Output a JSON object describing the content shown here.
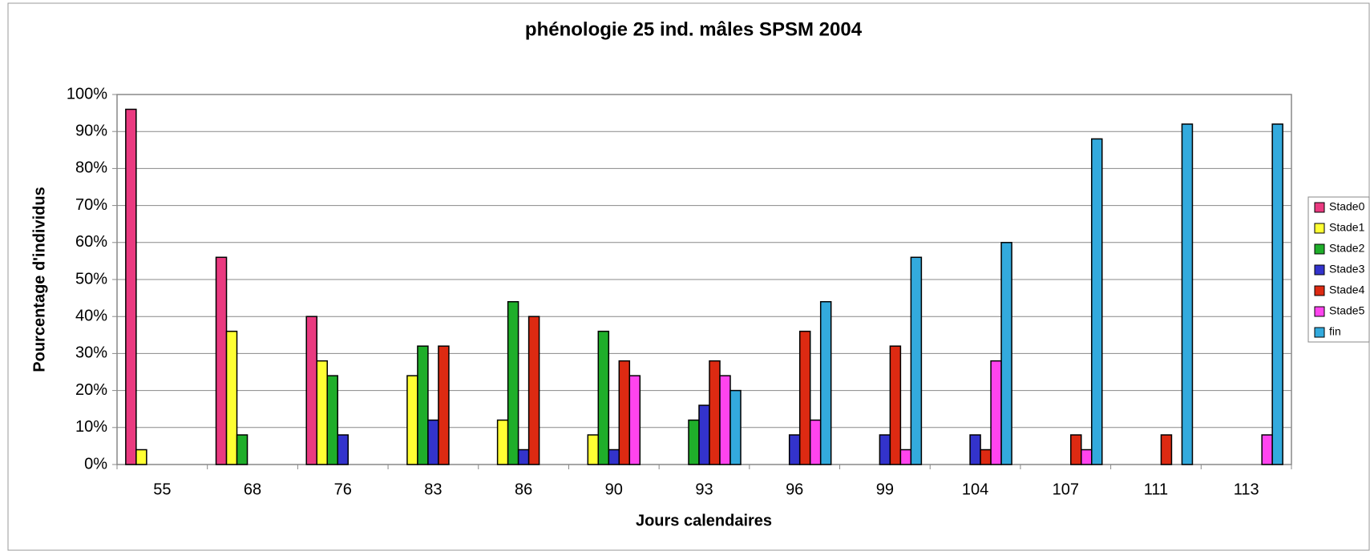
{
  "chart_data": {
    "type": "bar",
    "title": "phénologie 25 ind. mâles SPSM 2004",
    "x_label": "Jours calendaires",
    "y_label": "Pourcentage d'individus",
    "categories": [
      "55",
      "68",
      "76",
      "83",
      "86",
      "90",
      "93",
      "96",
      "99",
      "104",
      "107",
      "111",
      "113"
    ],
    "series": [
      {
        "name": "Stade0",
        "color": "#ea3a80",
        "values": [
          96,
          56,
          40,
          0,
          0,
          0,
          0,
          0,
          0,
          0,
          0,
          0,
          0
        ]
      },
      {
        "name": "Stade1",
        "color": "#ffff33",
        "values": [
          4,
          36,
          28,
          24,
          12,
          8,
          0,
          0,
          0,
          0,
          0,
          0,
          0
        ]
      },
      {
        "name": "Stade2",
        "color": "#1fae2a",
        "values": [
          0,
          8,
          24,
          32,
          44,
          36,
          12,
          0,
          0,
          0,
          0,
          0,
          0
        ]
      },
      {
        "name": "Stade3",
        "color": "#3333cc",
        "values": [
          0,
          0,
          8,
          12,
          4,
          4,
          16,
          8,
          8,
          8,
          0,
          0,
          0
        ]
      },
      {
        "name": "Stade4",
        "color": "#dd2a12",
        "values": [
          0,
          0,
          0,
          32,
          40,
          28,
          28,
          36,
          32,
          4,
          8,
          8,
          0
        ]
      },
      {
        "name": "Stade5",
        "color": "#ff44ee",
        "values": [
          0,
          0,
          0,
          0,
          0,
          24,
          24,
          12,
          4,
          28,
          4,
          0,
          8
        ]
      },
      {
        "name": "fin",
        "color": "#33aadd",
        "values": [
          0,
          0,
          0,
          0,
          0,
          0,
          20,
          44,
          56,
          60,
          88,
          92,
          92
        ]
      }
    ],
    "ylim": [
      0,
      100
    ],
    "yticks": [
      {
        "value": 0,
        "label": "0%"
      },
      {
        "value": 10,
        "label": "10%"
      },
      {
        "value": 20,
        "label": "20%"
      },
      {
        "value": 30,
        "label": "30%"
      },
      {
        "value": 40,
        "label": "40%"
      },
      {
        "value": 50,
        "label": "50%"
      },
      {
        "value": 60,
        "label": "60%"
      },
      {
        "value": 70,
        "label": "70%"
      },
      {
        "value": 80,
        "label": "80%"
      },
      {
        "value": 90,
        "label": "90%"
      },
      {
        "value": 100,
        "label": "100%"
      }
    ],
    "grid": true,
    "legend": "right"
  }
}
